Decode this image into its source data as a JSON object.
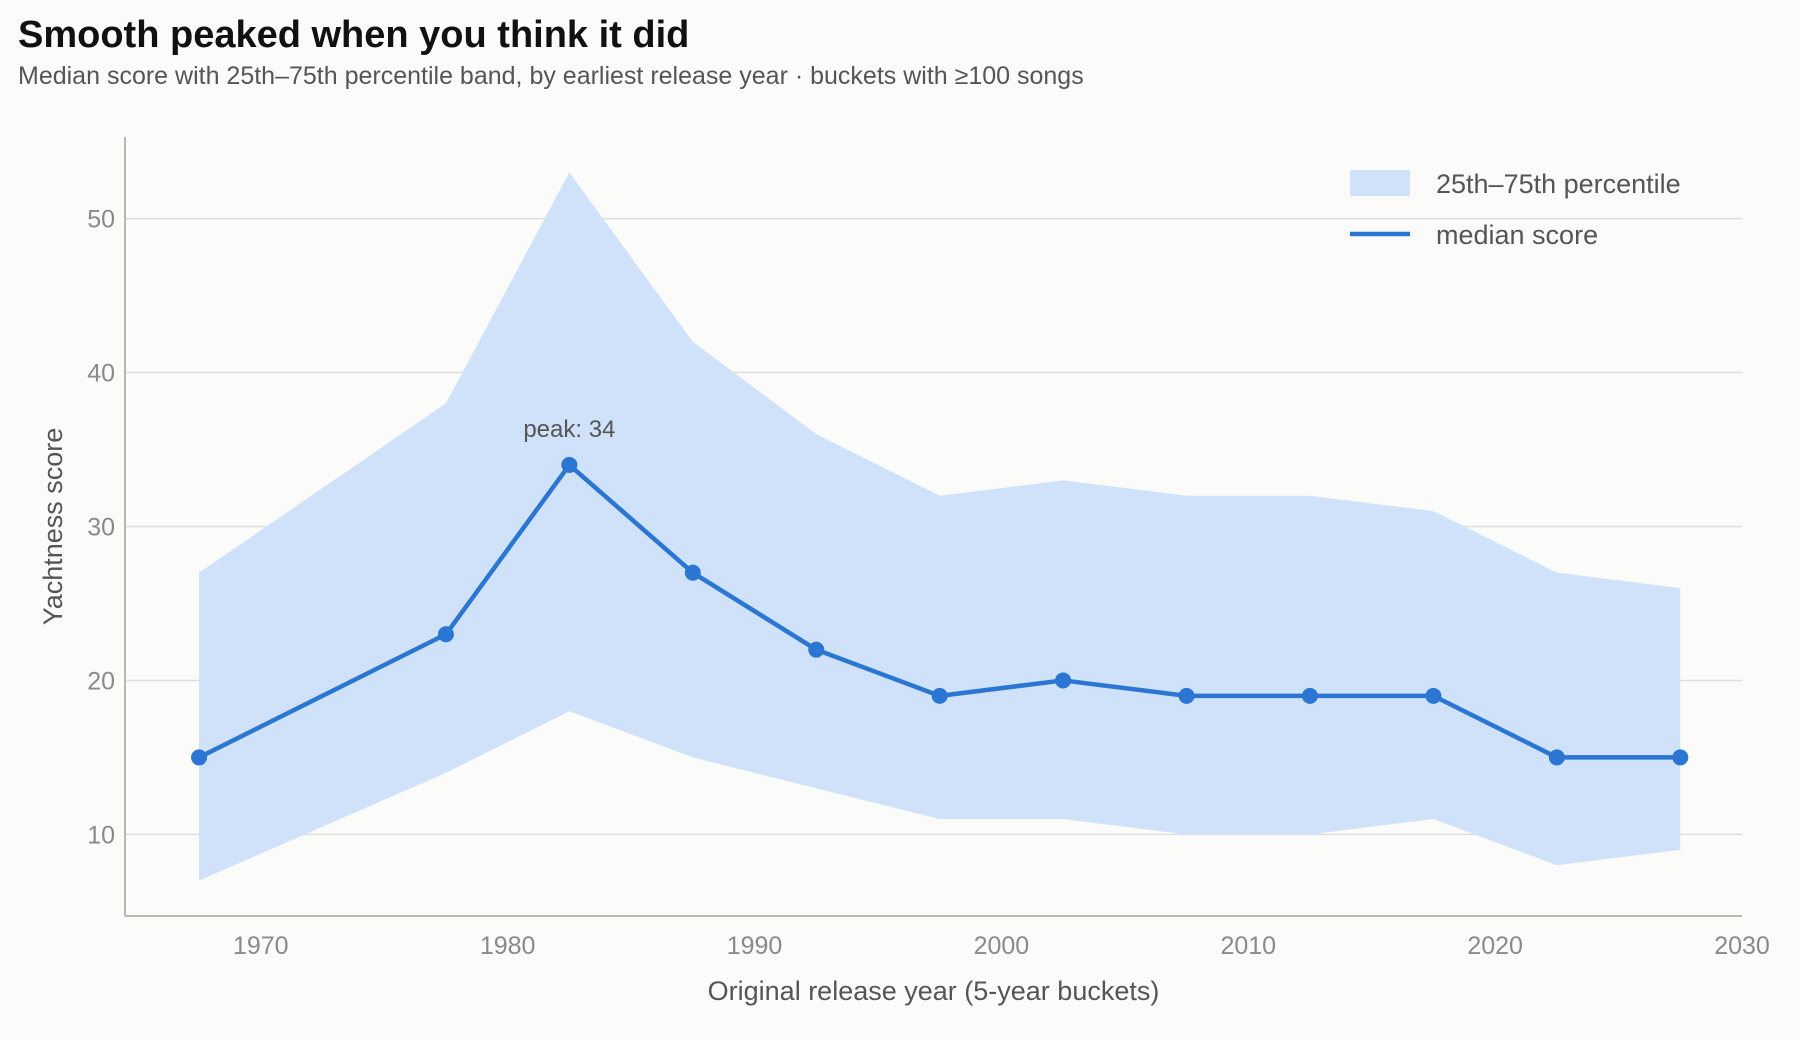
{
  "title": "Smooth peaked when you think it did",
  "subtitle": "Median score with 25th–75th percentile band, by earliest release year · buckets with ≥100 songs",
  "colors": {
    "band": "#cfe2fa",
    "line": "#2a76d2",
    "grid": "#dddddd",
    "axis": "#b8b8b0",
    "background": "#fbfbf9"
  },
  "chart_data": {
    "type": "line",
    "xlabel": "Original release year (5-year buckets)",
    "ylabel": "Yachtness score",
    "xlim": [
      1964.5,
      2030
    ],
    "ylim": [
      4.7,
      55.3
    ],
    "xticks": [
      1970,
      1980,
      1990,
      2000,
      2010,
      2020,
      2030
    ],
    "yticks": [
      10,
      20,
      30,
      40,
      50
    ],
    "grid": "horizontal",
    "legend_position": "top-right",
    "x": [
      1967.5,
      1977.5,
      1982.5,
      1987.5,
      1992.5,
      1997.5,
      2002.5,
      2007.5,
      2012.5,
      2017.5,
      2022.5,
      2027.5
    ],
    "series": [
      {
        "name": "median score",
        "kind": "line",
        "values": [
          15,
          23,
          34,
          27,
          22,
          19,
          20,
          19,
          19,
          19,
          15,
          15
        ]
      },
      {
        "name": "25th–75th percentile",
        "kind": "band",
        "lower": [
          7,
          14,
          18,
          15,
          13,
          11,
          11,
          10,
          10,
          11,
          8,
          9
        ],
        "upper": [
          27,
          38,
          53,
          42,
          36,
          32,
          33,
          32,
          32,
          31,
          27,
          26
        ]
      }
    ],
    "annotations": [
      {
        "text": "peak: 34",
        "x": 1982.5,
        "y": 34
      }
    ]
  }
}
